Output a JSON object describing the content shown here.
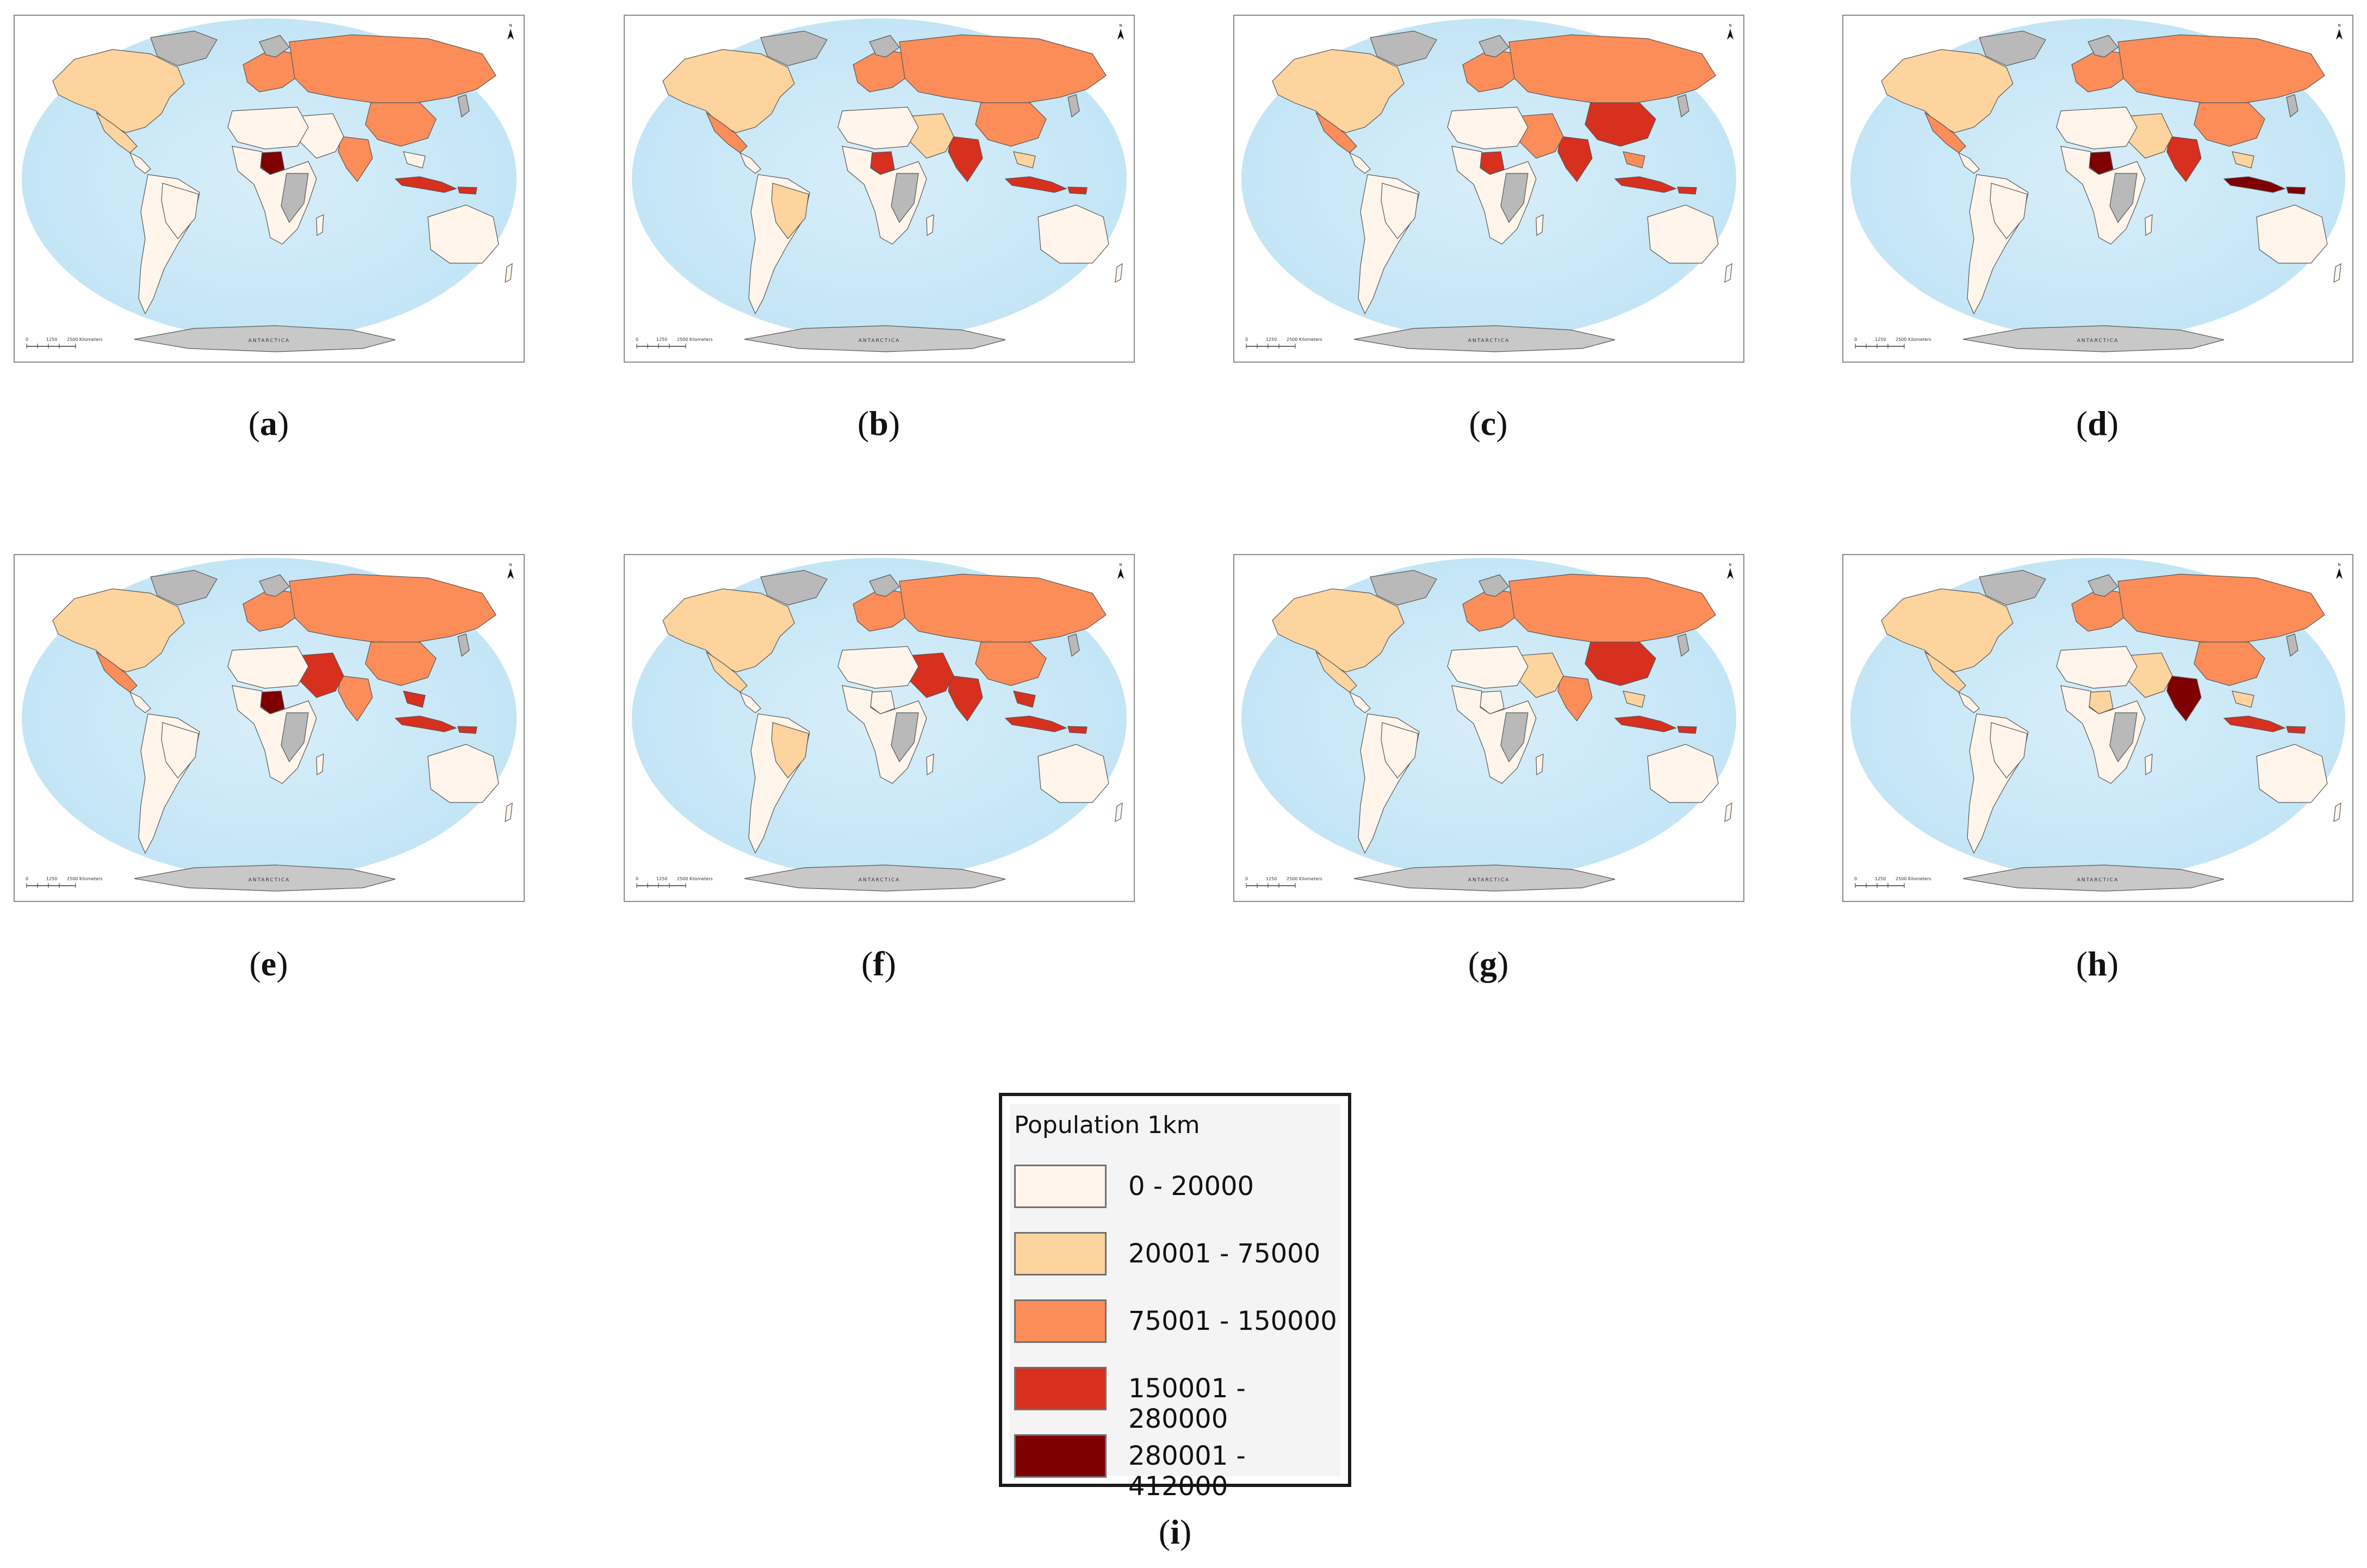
{
  "panels": [
    {
      "id": "a",
      "caption_letter": "a",
      "colors": {
        "americas_n": "#fdd49e",
        "americas_s": "#fff5eb",
        "nigeria": "#7f0000",
        "africa": "#fff5eb",
        "eurasia_n": "#fc8d59",
        "china": "#fc8d59",
        "india": "#fc8d59",
        "middle_east": "#fff5eb",
        "indonesia": "#d7301f",
        "australia": "#fff5eb",
        "brazil": "#fff5eb",
        "mexico": "#fdd49e"
      }
    },
    {
      "id": "b",
      "caption_letter": "b",
      "colors": {
        "americas_n": "#fdd49e",
        "americas_s": "#fff5eb",
        "nigeria": "#d7301f",
        "africa": "#fff5eb",
        "eurasia_n": "#fc8d59",
        "china": "#fc8d59",
        "india": "#d7301f",
        "middle_east": "#fdd49e",
        "indonesia": "#d7301f",
        "australia": "#fff5eb",
        "brazil": "#fdd49e",
        "mexico": "#fc8d59"
      }
    },
    {
      "id": "c",
      "caption_letter": "c",
      "colors": {
        "americas_n": "#fdd49e",
        "americas_s": "#fff5eb",
        "nigeria": "#d7301f",
        "africa": "#fff5eb",
        "eurasia_n": "#fc8d59",
        "china": "#d7301f",
        "india": "#d7301f",
        "middle_east": "#fc8d59",
        "indonesia": "#d7301f",
        "australia": "#fff5eb",
        "brazil": "#fff5eb",
        "mexico": "#fc8d59"
      }
    },
    {
      "id": "d",
      "caption_letter": "d",
      "colors": {
        "americas_n": "#fdd49e",
        "americas_s": "#fff5eb",
        "nigeria": "#7f0000",
        "africa": "#fff5eb",
        "eurasia_n": "#fc8d59",
        "china": "#fc8d59",
        "india": "#d7301f",
        "middle_east": "#fdd49e",
        "indonesia": "#7f0000",
        "australia": "#fff5eb",
        "brazil": "#fff5eb",
        "mexico": "#fc8d59"
      }
    },
    {
      "id": "e",
      "caption_letter": "e",
      "colors": {
        "americas_n": "#fdd49e",
        "americas_s": "#fff5eb",
        "nigeria": "#7f0000",
        "africa": "#fff5eb",
        "eurasia_n": "#fc8d59",
        "china": "#fc8d59",
        "india": "#fc8d59",
        "middle_east": "#d7301f",
        "indonesia": "#d7301f",
        "australia": "#fff5eb",
        "brazil": "#fff5eb",
        "mexico": "#fc8d59"
      }
    },
    {
      "id": "f",
      "caption_letter": "f",
      "colors": {
        "americas_n": "#fdd49e",
        "americas_s": "#fff5eb",
        "nigeria": "#fff5eb",
        "africa": "#fff5eb",
        "eurasia_n": "#fc8d59",
        "china": "#fc8d59",
        "india": "#d7301f",
        "middle_east": "#d7301f",
        "indonesia": "#d7301f",
        "australia": "#fff5eb",
        "brazil": "#fdd49e",
        "mexico": "#fdd49e"
      }
    },
    {
      "id": "g",
      "caption_letter": "g",
      "colors": {
        "americas_n": "#fdd49e",
        "americas_s": "#fff5eb",
        "nigeria": "#fff5eb",
        "africa": "#fff5eb",
        "eurasia_n": "#fc8d59",
        "china": "#d7301f",
        "india": "#fc8d59",
        "middle_east": "#fdd49e",
        "indonesia": "#d7301f",
        "australia": "#fff5eb",
        "brazil": "#fff5eb",
        "mexico": "#fdd49e"
      }
    },
    {
      "id": "h",
      "caption_letter": "h",
      "colors": {
        "americas_n": "#fdd49e",
        "americas_s": "#fff5eb",
        "nigeria": "#fdd49e",
        "africa": "#fff5eb",
        "eurasia_n": "#fc8d59",
        "china": "#fc8d59",
        "india": "#7f0000",
        "middle_east": "#fdd49e",
        "indonesia": "#d7301f",
        "australia": "#fff5eb",
        "brazil": "#fff5eb",
        "mexico": "#fdd49e"
      }
    }
  ],
  "map_labels": {
    "antarctica": "ANTARCTICA",
    "scale_zero": "0",
    "scale_mid": "1250",
    "scale_end": "2500 Kilometers",
    "north_arrow": "N"
  },
  "legend": {
    "title": "Population 1km",
    "classes": [
      {
        "label": "0 - 20000",
        "color": "#fff5eb"
      },
      {
        "label": "20001 - 75000",
        "color": "#fdd49e"
      },
      {
        "label": "75001 - 150000",
        "color": "#fc8d59"
      },
      {
        "label": "150001 - 280000",
        "color": "#d7301f"
      },
      {
        "label": "280001 - 412000",
        "color": "#7f0000"
      }
    ],
    "caption_letter": "i"
  },
  "colors": {
    "ocean": "#bfe3f5",
    "ocean_light": "#d8eef9",
    "no_data": "#b9b9b9",
    "antarctica": "#c8c8c8"
  }
}
